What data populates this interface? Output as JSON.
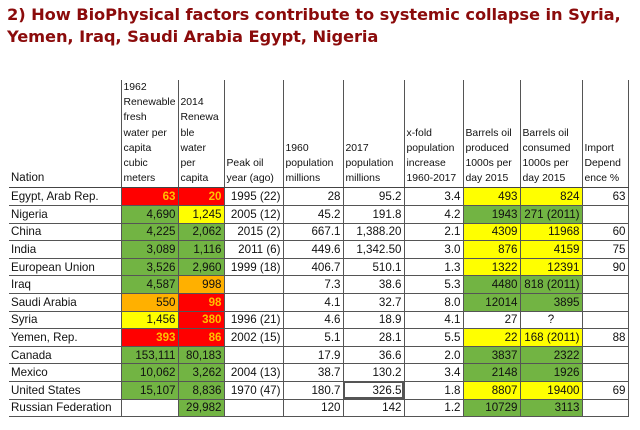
{
  "title": "2) How BioPhysical factors contribute to systemic collapse in Syria, Yemen, Iraq, Saudi Arabia Egypt, Nigeria",
  "colors": {
    "r": "#ff0000",
    "g": "#72b443",
    "y": "#ffff00",
    "o": "#ffb000",
    "title": "#8b0b0b"
  },
  "table": {
    "headers": [
      "Nation",
      "1962\nRenewable\nfresh\nwater per\ncapita\ncubic\nmeters",
      "2014\nRenewa\nble\nwater\nper\ncapita",
      "Peak oil\nyear (ago)",
      "1960\npopulation\nmillions",
      "2017\npopulation\nmillions",
      "x-fold\npopulation\nincrease\n1960-2017",
      "Barrels oil\nproduced\n1000s per\nday 2015",
      "Barrels oil\nconsumed\n1000s per\nday 2015",
      "Import\nDepend\nence %"
    ],
    "rows": [
      {
        "cells": [
          "Egypt, Arab Rep.",
          "63",
          "20",
          "1995 (22)",
          "28",
          "95.2",
          "3.4",
          "493",
          "824",
          "63"
        ],
        "fill": [
          "",
          "r",
          "r",
          "",
          "",
          "",
          "",
          "y",
          "y",
          ""
        ]
      },
      {
        "cells": [
          "Nigeria",
          "4,690",
          "1,245",
          "2005 (12)",
          "45.2",
          "191.8",
          "4.2",
          "1943",
          "271 (2011)",
          ""
        ],
        "fill": [
          "",
          "g",
          "y",
          "",
          "",
          "",
          "",
          "g",
          "g",
          ""
        ]
      },
      {
        "cells": [
          "China",
          "4,225",
          "2,062",
          "2015 (2)",
          "667.1",
          "1,388.20",
          "2.1",
          "4309",
          "11968",
          "60"
        ],
        "fill": [
          "",
          "g",
          "g",
          "",
          "",
          "",
          "",
          "y",
          "y",
          ""
        ]
      },
      {
        "cells": [
          "India",
          "3,089",
          "1,116",
          "2011 (6)",
          "449.6",
          "1,342.50",
          "3.0",
          "876",
          "4159",
          "75"
        ],
        "fill": [
          "",
          "g",
          "g",
          "",
          "",
          "",
          "",
          "y",
          "y",
          ""
        ]
      },
      {
        "cells": [
          "European Union",
          "3,526",
          "2,960",
          "1999 (18)",
          "406.7",
          "510.1",
          "1.3",
          "1322",
          "12391",
          "90"
        ],
        "fill": [
          "",
          "g",
          "g",
          "",
          "",
          "",
          "",
          "y",
          "y",
          ""
        ]
      },
      {
        "cells": [
          "Iraq",
          "4,587",
          "998",
          "",
          "7.3",
          "38.6",
          "5.3",
          "4480",
          "818 (2011)",
          ""
        ],
        "fill": [
          "",
          "g",
          "o",
          "",
          "",
          "",
          "",
          "g",
          "g",
          ""
        ]
      },
      {
        "cells": [
          "Saudi Arabia",
          "550",
          "98",
          "",
          "4.1",
          "32.7",
          "8.0",
          "12014",
          "3895",
          ""
        ],
        "fill": [
          "",
          "o",
          "r",
          "",
          "",
          "",
          "",
          "g",
          "g",
          ""
        ]
      },
      {
        "cells": [
          "Syria",
          "1,456",
          "380",
          "1996 (21)",
          "4.6",
          "18.9",
          "4.1",
          "27",
          "?",
          ""
        ],
        "fill": [
          "",
          "y",
          "r",
          "",
          "",
          "",
          "",
          "",
          "",
          ""
        ]
      },
      {
        "cells": [
          "Yemen, Rep.",
          "393",
          "86",
          "2002 (15)",
          "5.1",
          "28.1",
          "5.5",
          "22",
          "168 (2011)",
          "88"
        ],
        "fill": [
          "",
          "r",
          "r",
          "",
          "",
          "",
          "",
          "y",
          "y",
          ""
        ]
      },
      {
        "cells": [
          "Canada",
          "153,111",
          "80,183",
          "",
          "17.9",
          "36.6",
          "2.0",
          "3837",
          "2322",
          ""
        ],
        "fill": [
          "",
          "g",
          "g",
          "",
          "",
          "",
          "",
          "g",
          "g",
          ""
        ]
      },
      {
        "cells": [
          "Mexico",
          "10,062",
          "3,262",
          "2004 (13)",
          "38.7",
          "130.2",
          "3.4",
          "2148",
          "1926",
          ""
        ],
        "fill": [
          "",
          "g",
          "g",
          "",
          "",
          "",
          "",
          "g",
          "g",
          ""
        ]
      },
      {
        "cells": [
          "United States",
          "15,107",
          "8,836",
          "1970 (47)",
          "180.7",
          "326.5",
          "1.8",
          "8807",
          "19400",
          "69"
        ],
        "fill": [
          "",
          "g",
          "g",
          "",
          "",
          "",
          "",
          "y",
          "y",
          ""
        ]
      },
      {
        "cells": [
          "Russian Federation",
          "",
          "29,982",
          "",
          "120",
          "142",
          "1.2",
          "10729",
          "3113",
          ""
        ],
        "fill": [
          "",
          "",
          "g",
          "",
          "",
          "",
          "",
          "g",
          "g",
          ""
        ]
      }
    ]
  }
}
